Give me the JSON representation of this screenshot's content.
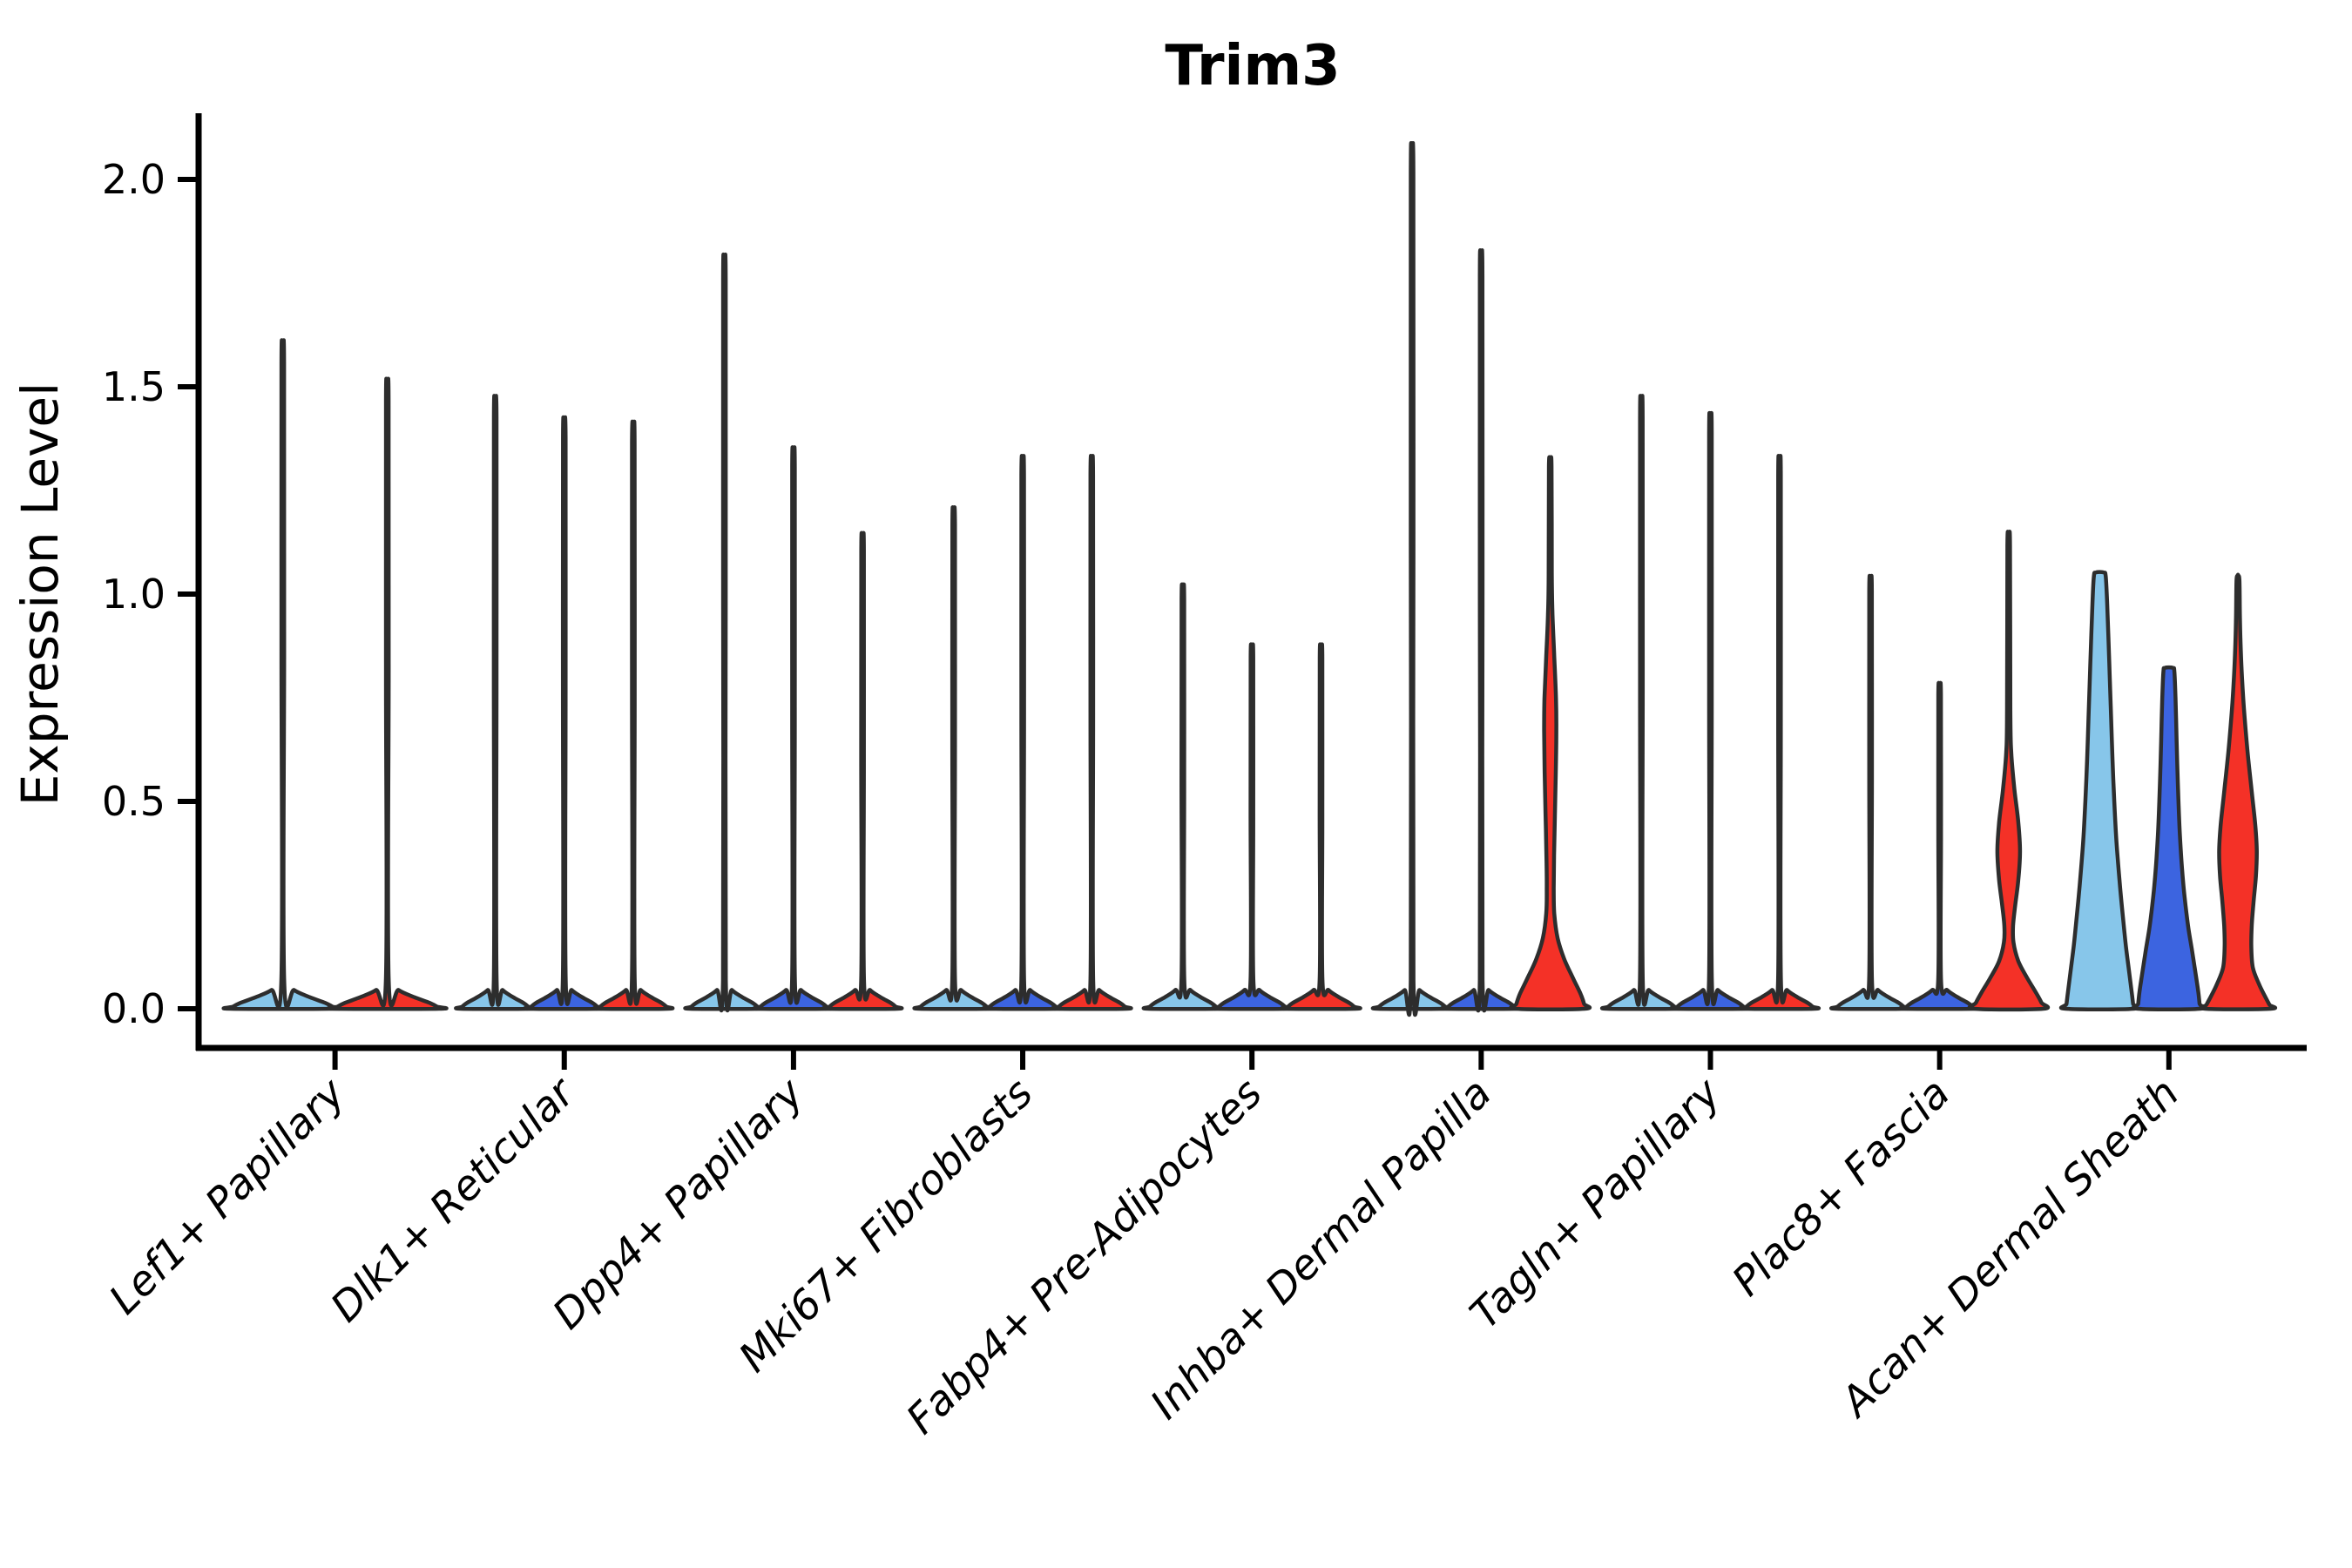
{
  "title": "Trim3",
  "y_axis": {
    "label": "Expression Level",
    "tick_labels": [
      "0.0",
      "0.5",
      "1.0",
      "1.5",
      "2.0"
    ],
    "tick_values": [
      0.0,
      0.5,
      1.0,
      1.5,
      2.0
    ]
  },
  "x_axis": {
    "categories": [
      "Lef1+ Papillary",
      "Dlk1+ Reticular",
      "Dpp4+ Papillary",
      "Mki67+ Fibroblasts",
      "Fabp4+ Pre-Adipocytes",
      "Inhba+ Dermal Papilla",
      "Tagln+ Papillary",
      "Plac8+ Fascia",
      "Acan+ Dermal Sheath"
    ]
  },
  "colors": {
    "red": "#f43127",
    "skyblue": "#87c6ea",
    "blue": "#3c64e0",
    "edge": "#2d2d2d",
    "axis": "#000000",
    "background": "#ffffff"
  },
  "chart_data": {
    "type": "violin",
    "title": "Trim3",
    "xlabel": "",
    "ylabel": "Expression Level",
    "ylim": [
      0,
      2.16
    ],
    "yticks": [
      0.0,
      0.5,
      1.0,
      1.5,
      2.0
    ],
    "grid": false,
    "legend": "none",
    "categories": [
      "Lef1+ Papillary",
      "Dlk1+ Reticular",
      "Dpp4+ Papillary",
      "Mki67+ Fibroblasts",
      "Fabp4+ Pre-Adipocytes",
      "Inhba+ Dermal Papilla",
      "Tagln+ Papillary",
      "Plac8+ Fascia",
      "Acan+ Dermal Sheath"
    ],
    "groups": [
      {
        "category": "Lef1+ Papillary",
        "violins": [
          {
            "offset": -60,
            "base_halfwidth": 59.5,
            "shape": "spike",
            "max": 1.57,
            "color": "skyblue"
          },
          {
            "offset": 60,
            "base_halfwidth": 59.5,
            "shape": "spike",
            "max": 1.48,
            "color": "red"
          }
        ]
      },
      {
        "category": "Dlk1+ Reticular",
        "violins": [
          {
            "offset": -79.3,
            "base_halfwidth": 39.5,
            "shape": "spike",
            "max": 1.44,
            "color": "skyblue"
          },
          {
            "offset": 0,
            "base_halfwidth": 39.5,
            "shape": "spike",
            "max": 1.39,
            "color": "blue"
          },
          {
            "offset": 79.3,
            "base_halfwidth": 39.5,
            "shape": "spike",
            "max": 1.38,
            "color": "red"
          }
        ]
      },
      {
        "category": "Dpp4+ Papillary",
        "violins": [
          {
            "offset": -79.3,
            "base_halfwidth": 39.5,
            "shape": "spike",
            "max": 1.77,
            "color": "skyblue"
          },
          {
            "offset": 0,
            "base_halfwidth": 39.5,
            "shape": "spike",
            "max": 1.32,
            "color": "blue"
          },
          {
            "offset": 79.3,
            "base_halfwidth": 39.5,
            "shape": "spike",
            "max": 1.12,
            "color": "red"
          }
        ]
      },
      {
        "category": "Mki67+ Fibroblasts",
        "violins": [
          {
            "offset": -79.3,
            "base_halfwidth": 39.5,
            "shape": "spike",
            "max": 1.18,
            "color": "skyblue"
          },
          {
            "offset": 0,
            "base_halfwidth": 39.5,
            "shape": "spike",
            "max": 1.3,
            "color": "blue"
          },
          {
            "offset": 79.3,
            "base_halfwidth": 39.5,
            "shape": "spike",
            "max": 1.3,
            "color": "red"
          }
        ]
      },
      {
        "category": "Fabp4+ Pre-Adipocytes",
        "violins": [
          {
            "offset": -79.3,
            "base_halfwidth": 39.5,
            "shape": "spike",
            "max": 1.0,
            "color": "skyblue"
          },
          {
            "offset": 0,
            "base_halfwidth": 39.5,
            "shape": "spike",
            "max": 0.86,
            "color": "blue"
          },
          {
            "offset": 79.3,
            "base_halfwidth": 39.5,
            "shape": "spike",
            "max": 0.86,
            "color": "red"
          }
        ]
      },
      {
        "category": "Inhba+ Dermal Papilla",
        "violins": [
          {
            "offset": -79.3,
            "base_halfwidth": 39.5,
            "shape": "spike",
            "max": 2.03,
            "color": "skyblue"
          },
          {
            "offset": 0,
            "base_halfwidth": 39.5,
            "shape": "spike",
            "max": 1.78,
            "color": "blue"
          },
          {
            "offset": 79.3,
            "base_halfwidth": 39.5,
            "shape": "profile",
            "max": 1.32,
            "color": "red",
            "profile": [
              [
                1.32,
                0.35
              ],
              [
                1.307,
                1.5
              ],
              [
                1.05,
                1.8
              ],
              [
                0.95,
                2.6
              ],
              [
                0.85,
                4.6
              ],
              [
                0.75,
                6.6
              ],
              [
                0.67,
                7.0
              ],
              [
                0.57,
                6.4
              ],
              [
                0.47,
                5.4
              ],
              [
                0.37,
                4.4
              ],
              [
                0.29,
                4.0
              ],
              [
                0.23,
                4.6
              ],
              [
                0.17,
                8.5
              ],
              [
                0.12,
                16
              ],
              [
                0.07,
                27
              ],
              [
                0.035,
                35
              ],
              [
                0.012,
                38.8
              ],
              [
                0,
                39.5
              ]
            ]
          }
        ]
      },
      {
        "category": "Tagln+ Papillary",
        "violins": [
          {
            "offset": -79.3,
            "base_halfwidth": 39.5,
            "shape": "spike",
            "max": 1.44,
            "color": "skyblue"
          },
          {
            "offset": 0,
            "base_halfwidth": 39.5,
            "shape": "spike",
            "max": 1.4,
            "color": "blue"
          },
          {
            "offset": 79.3,
            "base_halfwidth": 39.5,
            "shape": "spike",
            "max": 1.3,
            "color": "red"
          }
        ]
      },
      {
        "category": "Plac8+ Fascia",
        "violins": [
          {
            "offset": -79.3,
            "base_halfwidth": 39.5,
            "shape": "spike",
            "max": 1.02,
            "color": "skyblue"
          },
          {
            "offset": 0,
            "base_halfwidth": 39.5,
            "shape": "spike",
            "max": 0.77,
            "color": "blue"
          },
          {
            "offset": 79.3,
            "base_halfwidth": 39.5,
            "shape": "profile",
            "max": 1.13,
            "color": "red",
            "profile": [
              [
                1.13,
                0.35
              ],
              [
                1.117,
                1.5
              ],
              [
                0.72,
                1.9
              ],
              [
                0.62,
                2.8
              ],
              [
                0.53,
                6.5
              ],
              [
                0.45,
                11
              ],
              [
                0.38,
                13
              ],
              [
                0.31,
                11
              ],
              [
                0.25,
                7.5
              ],
              [
                0.2,
                5
              ],
              [
                0.16,
                5.5
              ],
              [
                0.115,
                11
              ],
              [
                0.075,
                21
              ],
              [
                0.04,
                31
              ],
              [
                0.015,
                37.5
              ],
              [
                0,
                39.5
              ]
            ]
          }
        ]
      },
      {
        "category": "Acan+ Dermal Sheath",
        "violins": [
          {
            "offset": -79.3,
            "base_halfwidth": 39.5,
            "shape": "profile",
            "max": 1.05,
            "color": "skyblue",
            "profile": [
              [
                1.052,
                4.5
              ],
              [
                1.043,
                6.8
              ],
              [
                0.98,
                8.4
              ],
              [
                0.9,
                9.8
              ],
              [
                0.8,
                11.4
              ],
              [
                0.7,
                13
              ],
              [
                0.6,
                14.6
              ],
              [
                0.5,
                16.6
              ],
              [
                0.4,
                19.2
              ],
              [
                0.3,
                23
              ],
              [
                0.22,
                26.6
              ],
              [
                0.15,
                30
              ],
              [
                0.09,
                33.6
              ],
              [
                0.04,
                36.6
              ],
              [
                0.012,
                38.2
              ],
              [
                0,
                38.8
              ]
            ]
          },
          {
            "offset": 0,
            "base_halfwidth": 39.5,
            "shape": "profile",
            "max": 0.82,
            "color": "blue",
            "profile": [
              [
                0.822,
                4.5
              ],
              [
                0.813,
                6.3
              ],
              [
                0.75,
                7.6
              ],
              [
                0.67,
                8.6
              ],
              [
                0.59,
                9.6
              ],
              [
                0.5,
                11
              ],
              [
                0.42,
                12.6
              ],
              [
                0.34,
                15
              ],
              [
                0.27,
                18
              ],
              [
                0.2,
                22
              ],
              [
                0.14,
                26.6
              ],
              [
                0.08,
                31
              ],
              [
                0.04,
                33.8
              ],
              [
                0.012,
                35.2
              ],
              [
                0,
                35.6
              ]
            ]
          },
          {
            "offset": 79.3,
            "base_halfwidth": 39.5,
            "shape": "profile",
            "max": 1.05,
            "color": "red",
            "profile": [
              [
                1.045,
                0.35
              ],
              [
                1.032,
                1.7
              ],
              [
                0.95,
                2.2
              ],
              [
                0.88,
                3
              ],
              [
                0.8,
                4.6
              ],
              [
                0.72,
                7
              ],
              [
                0.62,
                11
              ],
              [
                0.52,
                16
              ],
              [
                0.44,
                20
              ],
              [
                0.38,
                21.6
              ],
              [
                0.32,
                20.6
              ],
              [
                0.26,
                18
              ],
              [
                0.2,
                15.8
              ],
              [
                0.15,
                15.3
              ],
              [
                0.1,
                17
              ],
              [
                0.06,
                24
              ],
              [
                0.03,
                31
              ],
              [
                0.01,
                36
              ],
              [
                0,
                37.5
              ]
            ]
          }
        ]
      }
    ]
  }
}
